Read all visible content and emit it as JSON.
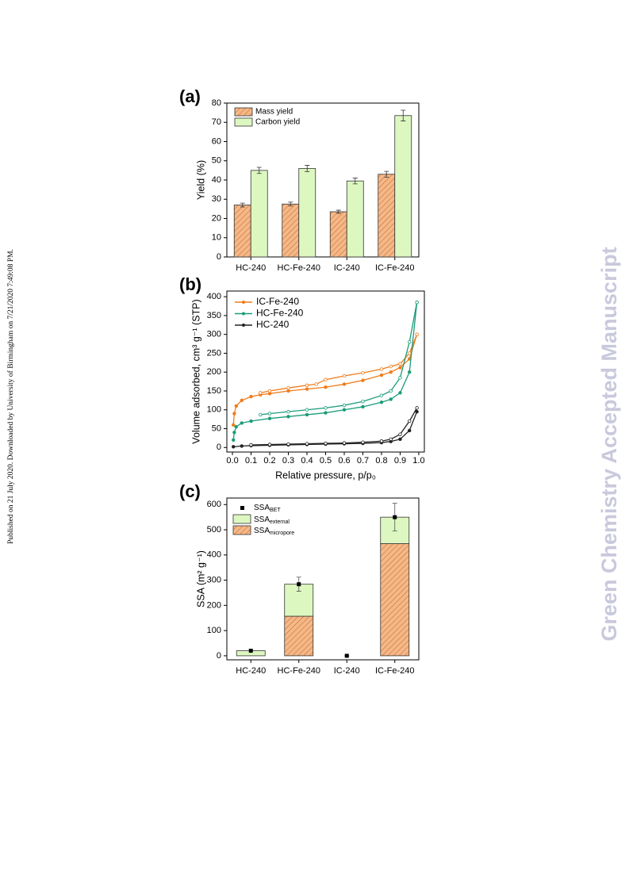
{
  "sidebar_text": "Published on 21 July 2020. Downloaded by University of Birmingham on 7/21/2020 7:49:08 PM.",
  "watermark": "Green Chemistry Accepted Manuscript",
  "chart_data": [
    {
      "type": "bar",
      "panel_label": "(a)",
      "ylabel": "Yield (%)",
      "categories": [
        "HC-240",
        "HC-Fe-240",
        "IC-240",
        "IC-Fe-240"
      ],
      "series": [
        {
          "name": "Mass yield",
          "color": "#f5b887",
          "hatch": true,
          "values": [
            27,
            27.5,
            23.5,
            43
          ],
          "errors": [
            1,
            1,
            0.8,
            1.5
          ]
        },
        {
          "name": "Carbon yield",
          "color": "#ddf7c0",
          "hatch": false,
          "values": [
            45,
            46,
            39.5,
            73.5
          ],
          "errors": [
            1.6,
            1.6,
            1.5,
            2.8
          ]
        }
      ],
      "ylim": [
        0,
        80
      ],
      "yticks": [
        0,
        10,
        20,
        30,
        40,
        50,
        60,
        70,
        80
      ]
    },
    {
      "type": "line",
      "panel_label": "(b)",
      "xlabel": "Relative pressure, p/p₀",
      "ylabel": "Volume adsorbed, cm³ g⁻¹ (STP)",
      "xlim": [
        -0.03,
        1.03
      ],
      "ylim": [
        -12,
        415
      ],
      "xticks": [
        {
          "value": 0,
          "label": "0.0"
        },
        0.1,
        0.2,
        0.3,
        0.4,
        0.5,
        0.6,
        0.7,
        0.8,
        0.9,
        {
          "value": 1,
          "label": "1.0"
        }
      ],
      "yticks": [
        0,
        50,
        100,
        150,
        200,
        250,
        300,
        350,
        400
      ],
      "series": [
        {
          "name": "IC-Fe-240",
          "color": "#f07c1a",
          "x": [
            0.005,
            0.01,
            0.02,
            0.05,
            0.1,
            0.15,
            0.2,
            0.3,
            0.4,
            0.5,
            0.6,
            0.7,
            0.8,
            0.85,
            0.9,
            0.95,
            0.99
          ],
          "values": [
            60,
            90,
            110,
            125,
            135,
            140,
            143,
            150,
            155,
            160,
            168,
            178,
            192,
            200,
            212,
            235,
            300
          ],
          "desorption_x": [
            0.99,
            0.95,
            0.9,
            0.85,
            0.8,
            0.7,
            0.6,
            0.5,
            0.45,
            0.4,
            0.3,
            0.2,
            0.15
          ],
          "desorption_values": [
            300,
            250,
            222,
            215,
            208,
            198,
            190,
            180,
            168,
            165,
            158,
            150,
            145
          ]
        },
        {
          "name": "HC-Fe-240",
          "color": "#1a9c7a",
          "x": [
            0.005,
            0.01,
            0.02,
            0.05,
            0.1,
            0.2,
            0.3,
            0.4,
            0.5,
            0.6,
            0.7,
            0.8,
            0.85,
            0.9,
            0.95,
            0.99
          ],
          "values": [
            20,
            40,
            55,
            65,
            70,
            77,
            82,
            87,
            92,
            100,
            108,
            120,
            128,
            145,
            200,
            385
          ],
          "desorption_x": [
            0.99,
            0.95,
            0.9,
            0.85,
            0.8,
            0.7,
            0.6,
            0.5,
            0.4,
            0.3,
            0.2,
            0.15
          ],
          "desorption_values": [
            385,
            280,
            185,
            150,
            138,
            122,
            112,
            105,
            100,
            95,
            90,
            87
          ]
        },
        {
          "name": "HC-240",
          "color": "#222222",
          "x": [
            0.005,
            0.05,
            0.1,
            0.2,
            0.3,
            0.4,
            0.5,
            0.6,
            0.7,
            0.8,
            0.85,
            0.9,
            0.95,
            0.99
          ],
          "values": [
            2,
            4,
            5,
            6,
            7,
            8,
            9,
            10,
            11,
            13,
            16,
            22,
            45,
            95
          ],
          "desorption_x": [
            0.99,
            0.95,
            0.9,
            0.85,
            0.8,
            0.7,
            0.6,
            0.5,
            0.4,
            0.3,
            0.2,
            0.1
          ],
          "desorption_values": [
            105,
            70,
            35,
            22,
            17,
            14,
            12,
            11,
            10,
            9,
            8,
            7
          ]
        }
      ]
    },
    {
      "type": "stacked_bar",
      "panel_label": "(c)",
      "ylabel": "SSA (m² g⁻¹)",
      "categories": [
        "HC-240",
        "HC-Fe-240",
        "IC-240",
        "IC-Fe-240"
      ],
      "series": [
        {
          "name": "SSA",
          "name_sub": "micropore",
          "color": "#f5b887",
          "hatch": true,
          "values": [
            0,
            157,
            0,
            445
          ]
        },
        {
          "name": "SSA",
          "name_sub": "external",
          "color": "#ddf7c0",
          "hatch": false,
          "values": [
            20,
            127,
            0,
            105
          ]
        }
      ],
      "points": {
        "name": "SSA",
        "name_sub": "BET",
        "color": "#000000",
        "values": [
          20,
          284,
          0,
          550
        ],
        "errors": [
          0,
          28,
          0,
          55
        ]
      },
      "ylim": [
        -16,
        626
      ],
      "yticks": [
        0,
        100,
        200,
        300,
        400,
        500,
        600
      ]
    }
  ]
}
